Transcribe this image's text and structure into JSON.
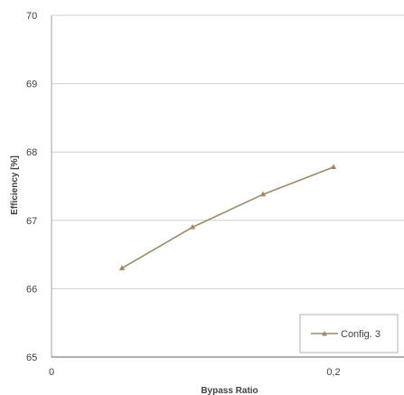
{
  "chart_data": {
    "type": "line",
    "xlabel": "Bypass Ratio",
    "ylabel": "Efficiency [%]",
    "xlim": [
      0,
      0.25
    ],
    "ylim": [
      65,
      70
    ],
    "x_ticks": [
      {
        "value": 0,
        "label": "0"
      },
      {
        "value": 0.2,
        "label": "0,2"
      }
    ],
    "y_ticks": [
      {
        "value": 65,
        "label": "65"
      },
      {
        "value": 66,
        "label": "66"
      },
      {
        "value": 67,
        "label": "67"
      },
      {
        "value": 68,
        "label": "68"
      },
      {
        "value": 69,
        "label": "69"
      },
      {
        "value": 70,
        "label": "70"
      }
    ],
    "grid": true,
    "legend_position": "bottom-right",
    "series": [
      {
        "name": "Config. 3",
        "color": "#9a8a6a",
        "marker": "triangle",
        "x": [
          0.05,
          0.1,
          0.15,
          0.2
        ],
        "y": [
          66.3,
          66.9,
          67.38,
          67.78
        ]
      }
    ]
  }
}
